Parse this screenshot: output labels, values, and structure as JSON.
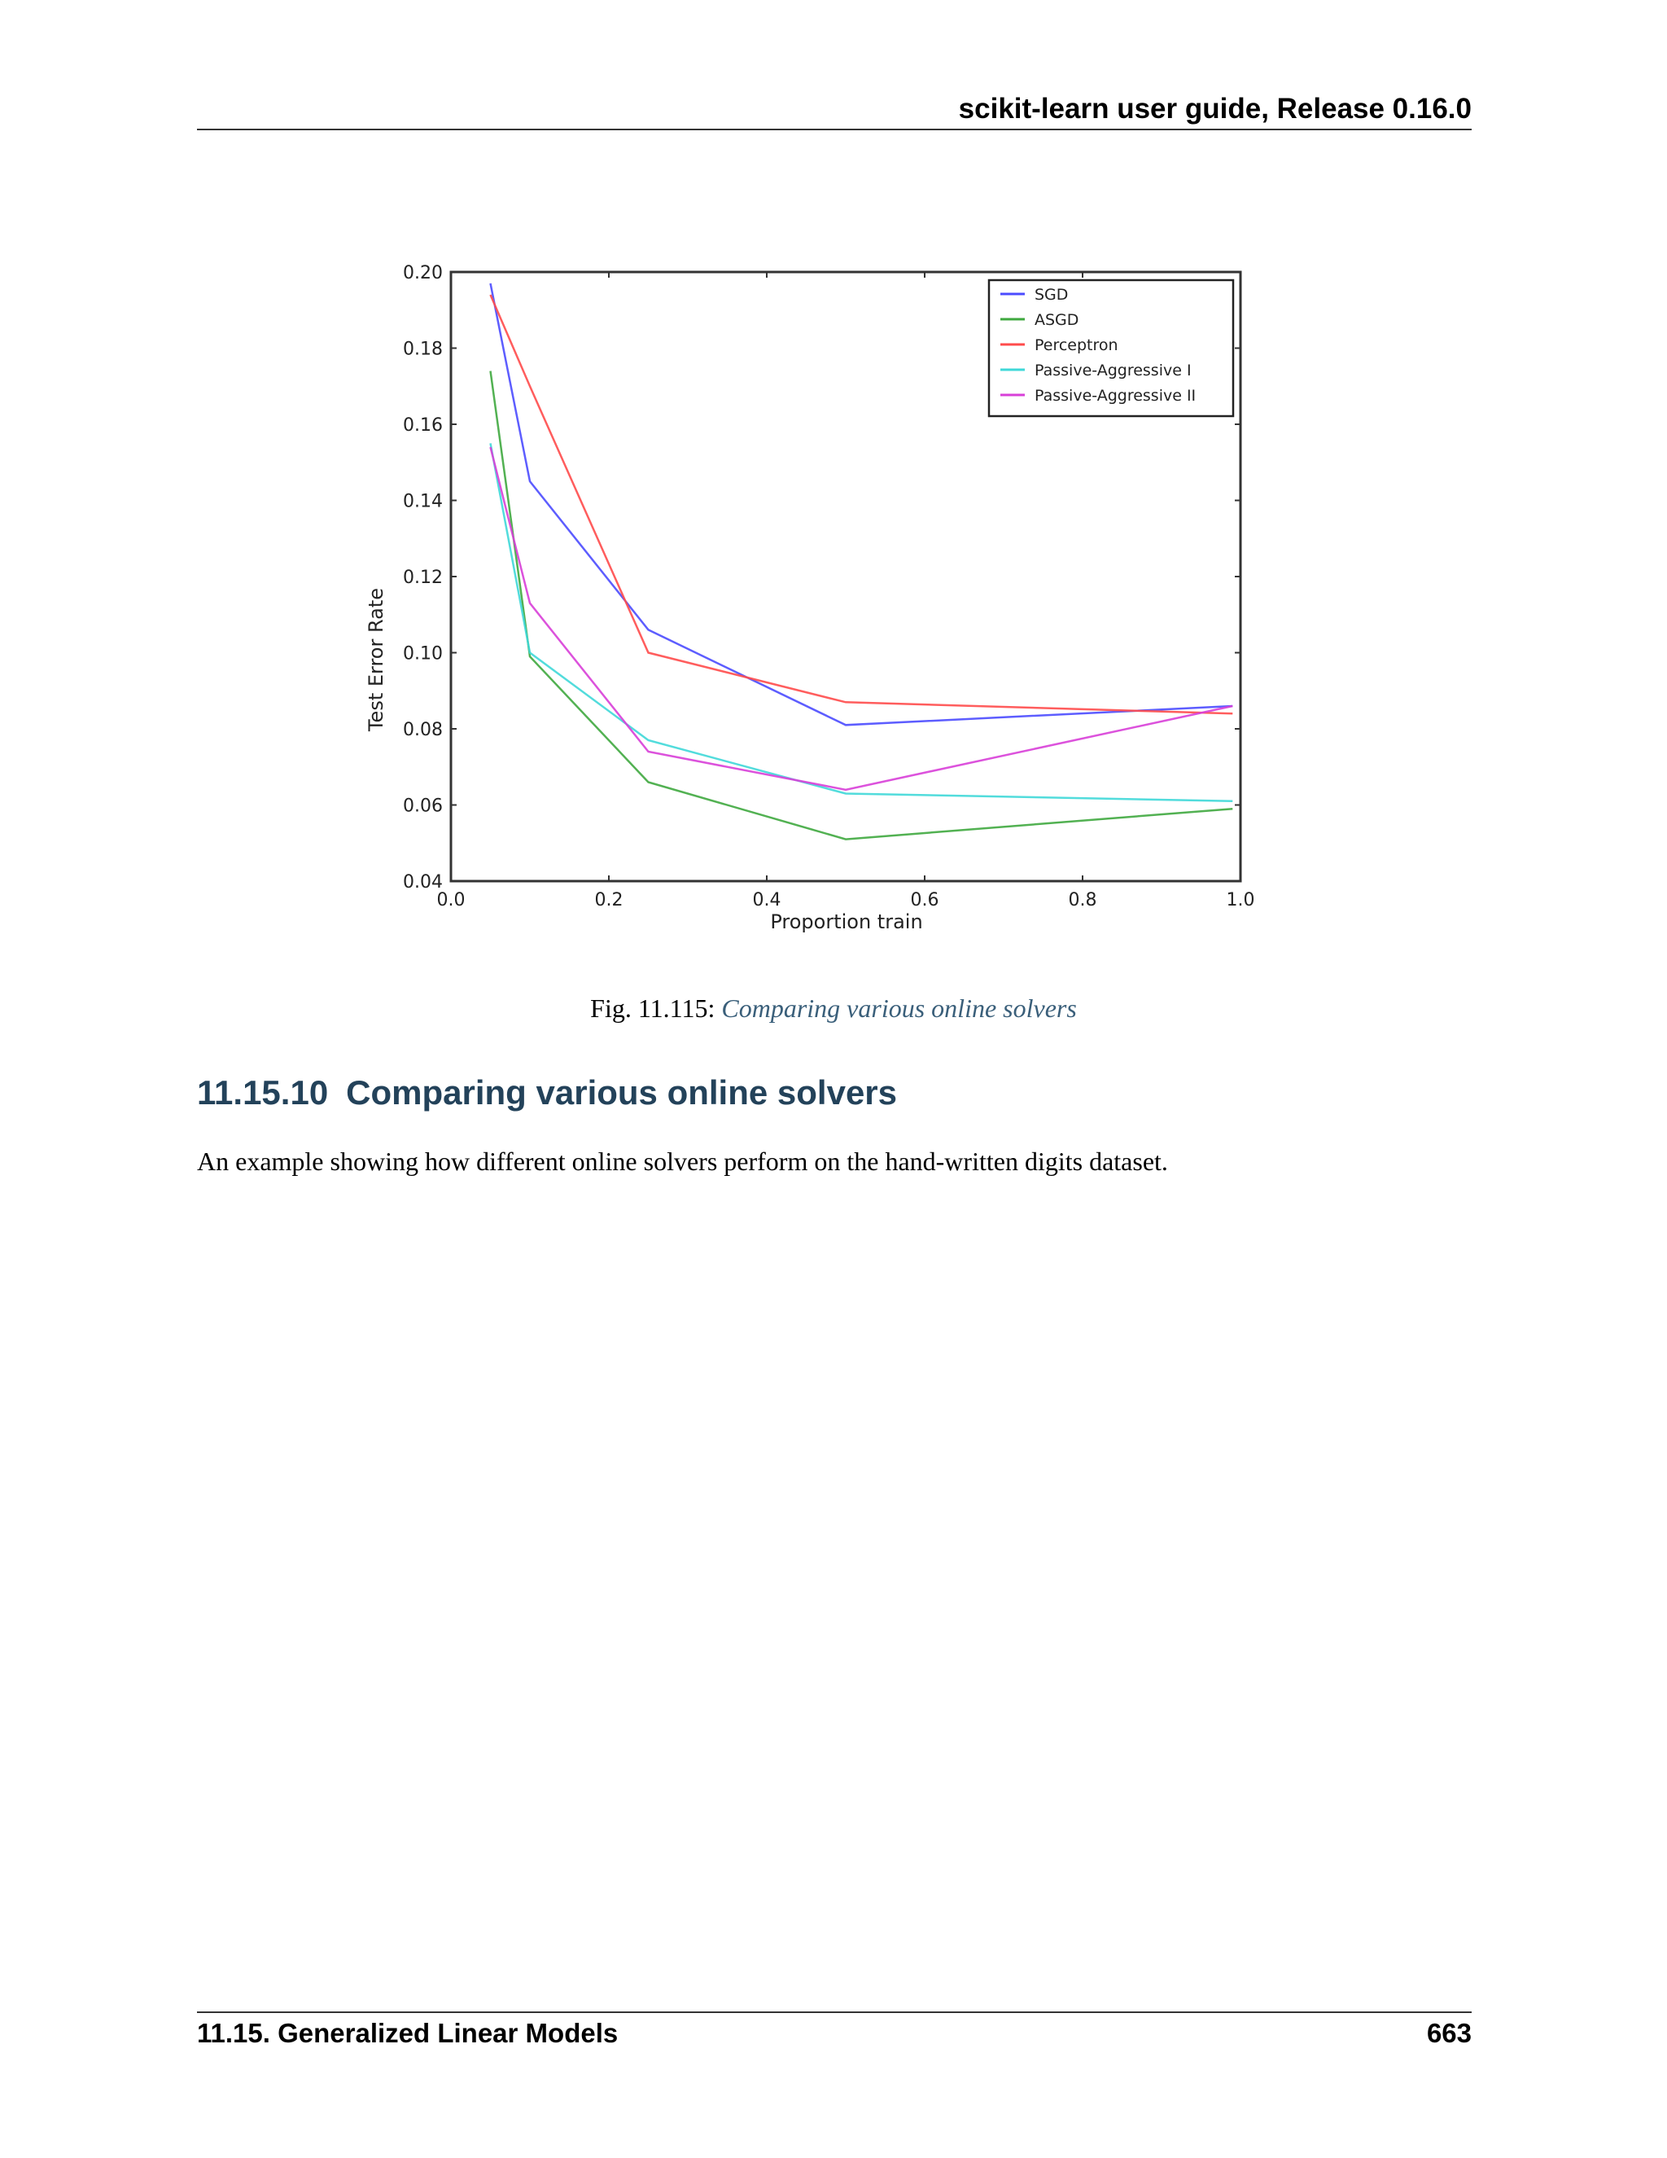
{
  "header": {
    "title": "scikit-learn user guide, Release 0.16.0"
  },
  "figure": {
    "caption_prefix": "Fig.  11.115: ",
    "caption_title": "Comparing various online solvers"
  },
  "section": {
    "number": "11.15.10",
    "title": "Comparing various online solvers",
    "body": "An example showing how different online solvers perform on the hand-written digits dataset."
  },
  "footer": {
    "left": "11.15.  Generalized Linear Models",
    "page": "663"
  },
  "chart_data": {
    "type": "line",
    "xlabel": "Proportion train",
    "ylabel": "Test Error Rate",
    "xlim": [
      0.0,
      1.0
    ],
    "ylim": [
      0.04,
      0.2
    ],
    "xticks": [
      "0.0",
      "0.2",
      "0.4",
      "0.6",
      "0.8",
      "1.0"
    ],
    "yticks": [
      "0.04",
      "0.06",
      "0.08",
      "0.10",
      "0.12",
      "0.14",
      "0.16",
      "0.18",
      "0.20"
    ],
    "legend_position": "top-right",
    "grid": false,
    "x": [
      0.05,
      0.1,
      0.25,
      0.5,
      0.99
    ],
    "series": [
      {
        "name": "SGD",
        "color": "#4b4bff",
        "values": [
          0.197,
          0.145,
          0.106,
          0.081,
          0.086
        ]
      },
      {
        "name": "ASGD",
        "color": "#3fa83f",
        "values": [
          0.174,
          0.099,
          0.066,
          0.051,
          0.059
        ]
      },
      {
        "name": "Perceptron",
        "color": "#ff4b4b",
        "values": [
          0.194,
          0.17,
          0.1,
          0.087,
          0.084
        ]
      },
      {
        "name": "Passive-Aggressive I",
        "color": "#3fd8d8",
        "values": [
          0.155,
          0.1,
          0.077,
          0.063,
          0.061
        ]
      },
      {
        "name": "Passive-Aggressive II",
        "color": "#d83fd8",
        "values": [
          0.154,
          0.113,
          0.074,
          0.064,
          0.086
        ]
      }
    ]
  }
}
